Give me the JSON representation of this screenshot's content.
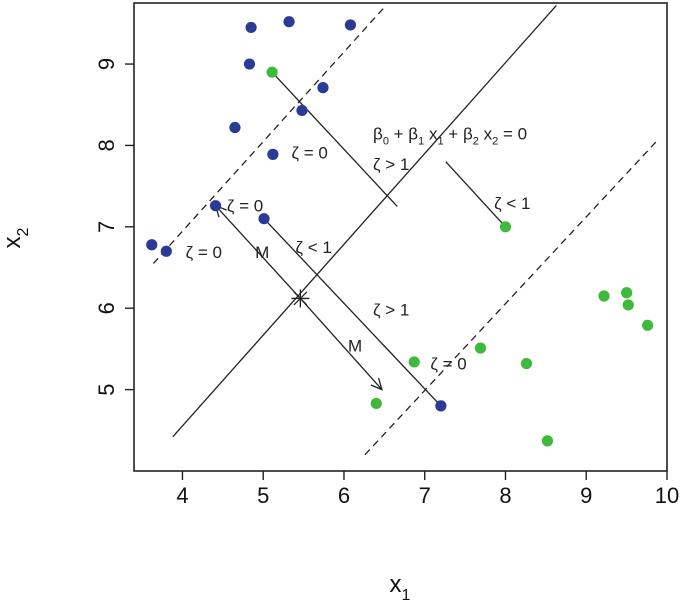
{
  "chart_data": {
    "type": "scatter",
    "title": "",
    "xlabel": "x",
    "xlabel_sub": "1",
    "ylabel": "x",
    "ylabel_sub": "2",
    "xlim": [
      3.4,
      10.0
    ],
    "ylim": [
      4.0,
      9.75
    ],
    "x_ticks": [
      4,
      5,
      6,
      7,
      8,
      9,
      10
    ],
    "y_ticks": [
      5,
      6,
      7,
      8,
      9
    ],
    "x_tick_labels": [
      "4",
      "5",
      "6",
      "7",
      "8",
      "9",
      "10"
    ],
    "y_tick_labels": [
      "5",
      "6",
      "7",
      "8",
      "9"
    ],
    "grid": false,
    "series": [
      {
        "color": "#2b3a96",
        "points": [
          {
            "x": 4.85,
            "y": 9.45
          },
          {
            "x": 5.32,
            "y": 9.52
          },
          {
            "x": 6.08,
            "y": 9.48
          },
          {
            "x": 4.83,
            "y": 9.0
          },
          {
            "x": 5.74,
            "y": 8.71
          },
          {
            "x": 5.48,
            "y": 8.43
          },
          {
            "x": 4.65,
            "y": 8.22
          },
          {
            "x": 5.12,
            "y": 7.89
          },
          {
            "x": 4.41,
            "y": 7.26
          },
          {
            "x": 5.01,
            "y": 7.1
          },
          {
            "x": 3.62,
            "y": 6.78
          },
          {
            "x": 3.8,
            "y": 6.7
          },
          {
            "x": 7.2,
            "y": 4.8
          }
        ]
      },
      {
        "color": "#3dba3d",
        "points": [
          {
            "x": 5.11,
            "y": 8.9
          },
          {
            "x": 8.0,
            "y": 7.0
          },
          {
            "x": 9.22,
            "y": 6.15
          },
          {
            "x": 9.5,
            "y": 6.19
          },
          {
            "x": 9.52,
            "y": 6.04
          },
          {
            "x": 9.76,
            "y": 5.79
          },
          {
            "x": 7.69,
            "y": 5.51
          },
          {
            "x": 6.87,
            "y": 5.34
          },
          {
            "x": 8.26,
            "y": 5.32
          },
          {
            "x": 6.4,
            "y": 4.83
          },
          {
            "x": 8.52,
            "y": 4.37
          }
        ]
      }
    ],
    "hyperplane": [
      {
        "style": "solid",
        "from": {
          "x": 3.88,
          "y": 4.42
        },
        "to": {
          "x": 8.63,
          "y": 9.72
        }
      },
      {
        "style": "dashed",
        "from": {
          "x": 3.64,
          "y": 6.55
        },
        "to": {
          "x": 6.52,
          "y": 9.72
        }
      },
      {
        "style": "dashed",
        "from": {
          "x": 6.26,
          "y": 4.2
        },
        "to": {
          "x": 9.87,
          "y": 8.05
        }
      }
    ],
    "segments": [
      {
        "from": {
          "x": 5.11,
          "y": 8.9
        },
        "to": {
          "x": 6.66,
          "y": 7.25
        },
        "arrow": false
      },
      {
        "from": {
          "x": 7.26,
          "y": 7.8
        },
        "to": {
          "x": 8.0,
          "y": 7.0
        },
        "arrow": false
      },
      {
        "from": {
          "x": 5.01,
          "y": 7.1
        },
        "to": {
          "x": 7.2,
          "y": 4.8
        },
        "arrow": false
      },
      {
        "from": {
          "x": 5.46,
          "y": 6.12
        },
        "to": {
          "x": 4.41,
          "y": 7.26
        },
        "arrow": true
      },
      {
        "from": {
          "x": 5.46,
          "y": 6.12
        },
        "to": {
          "x": 6.47,
          "y": 5.0
        },
        "arrow": true
      }
    ],
    "center_marker": {
      "x": 5.46,
      "y": 6.12
    },
    "annotations": {
      "equation": {
        "x": 6.36,
        "y": 8.07,
        "parts": [
          {
            "t": "β"
          },
          {
            "t": "0",
            "sub": true
          },
          {
            "t": " + β"
          },
          {
            "t": "1",
            "sub": true
          },
          {
            "t": " x"
          },
          {
            "t": "1",
            "sub": true
          },
          {
            "t": " + β"
          },
          {
            "t": "2",
            "sub": true
          },
          {
            "t": " x"
          },
          {
            "t": "2",
            "sub": true
          },
          {
            "t": " = 0"
          }
        ]
      },
      "labels": [
        {
          "text": "ζ > 1",
          "x": 6.36,
          "y": 7.7
        },
        {
          "text": "ζ = 0",
          "x": 5.35,
          "y": 7.84
        },
        {
          "text": "ζ < 1",
          "x": 7.86,
          "y": 7.22
        },
        {
          "text": "ζ = 0",
          "x": 4.55,
          "y": 7.19
        },
        {
          "text": "ζ = 0",
          "x": 4.04,
          "y": 6.62
        },
        {
          "text": "M",
          "x": 4.9,
          "y": 6.62
        },
        {
          "text": "ζ < 1",
          "x": 5.4,
          "y": 6.68
        },
        {
          "text": "ζ > 1",
          "x": 6.36,
          "y": 5.91
        },
        {
          "text": "M",
          "x": 6.05,
          "y": 5.47
        },
        {
          "text": "ζ = 0",
          "x": 7.07,
          "y": 5.25
        }
      ]
    }
  }
}
